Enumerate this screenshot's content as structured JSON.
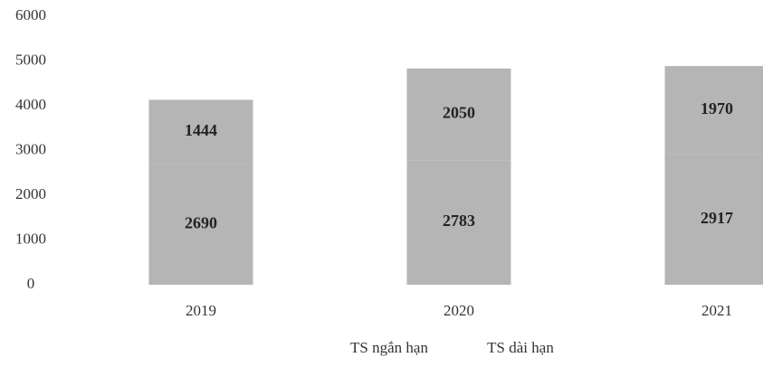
{
  "chart_data": {
    "type": "stacked-bar",
    "categories": [
      "2019",
      "2020",
      "2021"
    ],
    "series": [
      {
        "name": "TS ngắn hạn",
        "color": "#b5b5b5",
        "values": [
          2690,
          2783,
          2917
        ]
      },
      {
        "name": "TS dài hạn",
        "color": "#b5b5b5",
        "values": [
          1444,
          2050,
          1970
        ]
      }
    ],
    "ylim": [
      0,
      6000
    ],
    "yticks": [
      0,
      1000,
      2000,
      3000,
      4000,
      5000,
      6000
    ],
    "grid": false
  }
}
